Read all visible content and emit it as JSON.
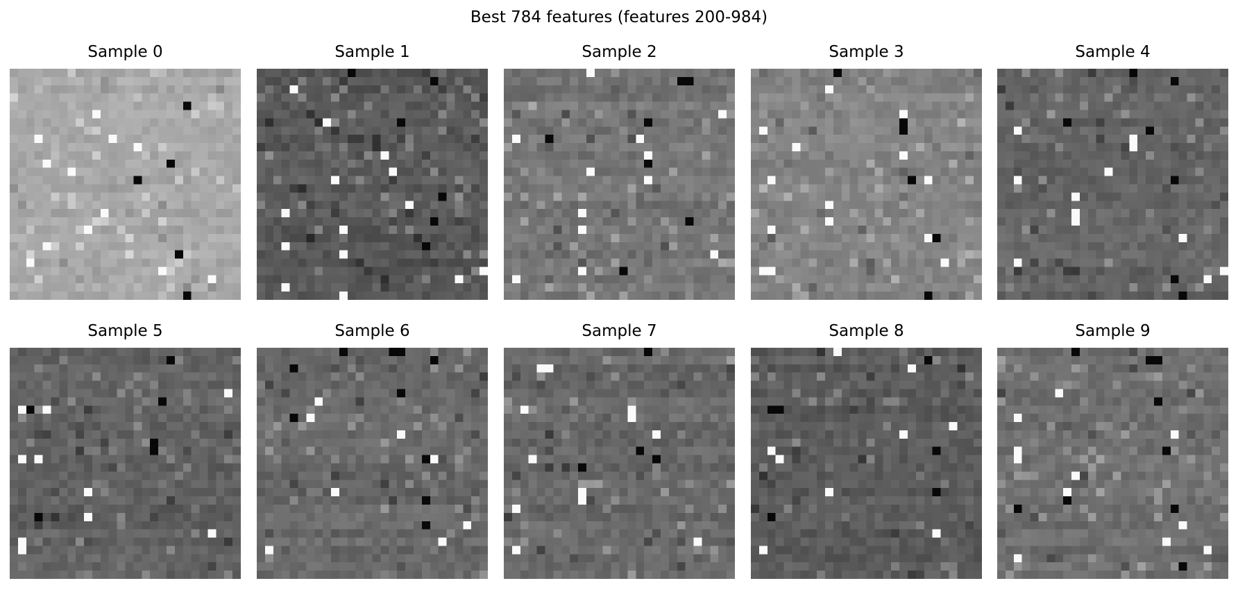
{
  "suptitle": "Best 784 features (features 200-984)",
  "chart_data": {
    "type": "heatmap",
    "title": "Best 784 features (features 200-984)",
    "grid_size": [
      28,
      28
    ],
    "colormap": "gray",
    "panels": [
      {
        "title": "Sample 0",
        "base_gray": 168,
        "contrast": 22,
        "seed": 11,
        "bright": [
          [
            9,
            15
          ],
          [
            5,
            10
          ],
          [
            8,
            3
          ],
          [
            8,
            12
          ],
          [
            11,
            4
          ],
          [
            12,
            7
          ],
          [
            17,
            11
          ],
          [
            19,
            9
          ],
          [
            21,
            4
          ],
          [
            23,
            2
          ],
          [
            24,
            18
          ],
          [
            25,
            24
          ]
        ],
        "dark": [
          [
            4,
            21
          ],
          [
            11,
            19
          ],
          [
            13,
            15
          ],
          [
            22,
            20
          ],
          [
            27,
            21
          ]
        ]
      },
      {
        "title": "Sample 1",
        "base_gray": 90,
        "contrast": 26,
        "seed": 23,
        "bright": [
          [
            2,
            4
          ],
          [
            6,
            8
          ],
          [
            10,
            15
          ],
          [
            12,
            16
          ],
          [
            13,
            9
          ],
          [
            16,
            18
          ],
          [
            17,
            3
          ],
          [
            19,
            10
          ],
          [
            21,
            3
          ],
          [
            22,
            10
          ],
          [
            24,
            27
          ],
          [
            25,
            24
          ],
          [
            26,
            3
          ],
          [
            27,
            10
          ]
        ],
        "dark": [
          [
            0,
            11
          ],
          [
            1,
            21
          ],
          [
            6,
            17
          ],
          [
            15,
            22
          ],
          [
            18,
            21
          ],
          [
            21,
            20
          ]
        ]
      },
      {
        "title": "Sample 2",
        "base_gray": 118,
        "contrast": 26,
        "seed": 37,
        "bright": [
          [
            0,
            10
          ],
          [
            5,
            26
          ],
          [
            8,
            1
          ],
          [
            8,
            16
          ],
          [
            10,
            17
          ],
          [
            12,
            10
          ],
          [
            13,
            17
          ],
          [
            17,
            9
          ],
          [
            19,
            9
          ],
          [
            22,
            25
          ],
          [
            24,
            9
          ],
          [
            25,
            1
          ]
        ],
        "dark": [
          [
            1,
            21
          ],
          [
            1,
            22
          ],
          [
            6,
            17
          ],
          [
            8,
            5
          ],
          [
            11,
            17
          ],
          [
            18,
            22
          ],
          [
            24,
            14
          ]
        ]
      },
      {
        "title": "Sample 3",
        "base_gray": 132,
        "contrast": 24,
        "seed": 41,
        "bright": [
          [
            2,
            9
          ],
          [
            5,
            18
          ],
          [
            7,
            1
          ],
          [
            9,
            5
          ],
          [
            10,
            18
          ],
          [
            13,
            2
          ],
          [
            13,
            21
          ],
          [
            16,
            9
          ],
          [
            18,
            9
          ],
          [
            19,
            2
          ],
          [
            20,
            21
          ],
          [
            23,
            23
          ],
          [
            24,
            1
          ],
          [
            24,
            2
          ]
        ],
        "dark": [
          [
            0,
            10
          ],
          [
            6,
            18
          ],
          [
            7,
            18
          ],
          [
            13,
            19
          ],
          [
            20,
            22
          ],
          [
            27,
            21
          ]
        ]
      },
      {
        "title": "Sample 4",
        "base_gray": 102,
        "contrast": 24,
        "seed": 53,
        "bright": [
          [
            7,
            2
          ],
          [
            8,
            16
          ],
          [
            9,
            16
          ],
          [
            12,
            13
          ],
          [
            13,
            2
          ],
          [
            15,
            9
          ],
          [
            17,
            9
          ],
          [
            18,
            9
          ],
          [
            20,
            22
          ],
          [
            23,
            2
          ],
          [
            24,
            27
          ],
          [
            25,
            25
          ]
        ],
        "dark": [
          [
            0,
            16
          ],
          [
            1,
            21
          ],
          [
            6,
            8
          ],
          [
            7,
            18
          ],
          [
            13,
            21
          ],
          [
            25,
            21
          ],
          [
            27,
            22
          ]
        ]
      },
      {
        "title": "Sample 5",
        "base_gray": 98,
        "contrast": 24,
        "seed": 61,
        "bright": [
          [
            5,
            26
          ],
          [
            7,
            4
          ],
          [
            7,
            1
          ],
          [
            13,
            1
          ],
          [
            13,
            3
          ],
          [
            17,
            9
          ],
          [
            20,
            9
          ],
          [
            22,
            24
          ],
          [
            23,
            1
          ],
          [
            24,
            1
          ]
        ],
        "dark": [
          [
            1,
            19
          ],
          [
            6,
            18
          ],
          [
            7,
            2
          ],
          [
            11,
            17
          ],
          [
            12,
            17
          ],
          [
            20,
            3
          ]
        ]
      },
      {
        "title": "Sample 6",
        "base_gray": 104,
        "contrast": 24,
        "seed": 71,
        "bright": [
          [
            6,
            7
          ],
          [
            8,
            6
          ],
          [
            10,
            17
          ],
          [
            13,
            21
          ],
          [
            17,
            9
          ],
          [
            21,
            25
          ],
          [
            23,
            22
          ],
          [
            24,
            1
          ]
        ],
        "dark": [
          [
            0,
            10
          ],
          [
            0,
            16
          ],
          [
            0,
            17
          ],
          [
            1,
            21
          ],
          [
            2,
            4
          ],
          [
            5,
            17
          ],
          [
            8,
            4
          ],
          [
            13,
            20
          ],
          [
            18,
            20
          ],
          [
            21,
            20
          ]
        ]
      },
      {
        "title": "Sample 7",
        "base_gray": 106,
        "contrast": 26,
        "seed": 83,
        "bright": [
          [
            2,
            4
          ],
          [
            2,
            5
          ],
          [
            7,
            2
          ],
          [
            7,
            15
          ],
          [
            8,
            15
          ],
          [
            10,
            18
          ],
          [
            13,
            3
          ],
          [
            17,
            9
          ],
          [
            18,
            9
          ],
          [
            19,
            1
          ],
          [
            23,
            23
          ],
          [
            24,
            1
          ]
        ],
        "dark": [
          [
            0,
            17
          ],
          [
            12,
            16
          ],
          [
            13,
            18
          ],
          [
            14,
            9
          ]
        ]
      },
      {
        "title": "Sample 8",
        "base_gray": 92,
        "contrast": 24,
        "seed": 97,
        "bright": [
          [
            0,
            10
          ],
          [
            2,
            19
          ],
          [
            9,
            24
          ],
          [
            10,
            18
          ],
          [
            12,
            2
          ],
          [
            13,
            3
          ],
          [
            17,
            9
          ],
          [
            22,
            22
          ],
          [
            24,
            1
          ]
        ],
        "dark": [
          [
            1,
            21
          ],
          [
            7,
            2
          ],
          [
            7,
            3
          ],
          [
            12,
            22
          ],
          [
            17,
            22
          ],
          [
            20,
            2
          ]
        ]
      },
      {
        "title": "Sample 9",
        "base_gray": 112,
        "contrast": 24,
        "seed": 101,
        "bright": [
          [
            5,
            7
          ],
          [
            8,
            2
          ],
          [
            10,
            21
          ],
          [
            12,
            2
          ],
          [
            13,
            2
          ],
          [
            15,
            9
          ],
          [
            17,
            8
          ],
          [
            21,
            22
          ],
          [
            23,
            20
          ],
          [
            24,
            25
          ],
          [
            25,
            2
          ]
        ],
        "dark": [
          [
            0,
            9
          ],
          [
            1,
            18
          ],
          [
            1,
            19
          ],
          [
            6,
            19
          ],
          [
            12,
            20
          ],
          [
            18,
            8
          ],
          [
            19,
            2
          ],
          [
            19,
            21
          ],
          [
            26,
            22
          ]
        ]
      }
    ]
  }
}
